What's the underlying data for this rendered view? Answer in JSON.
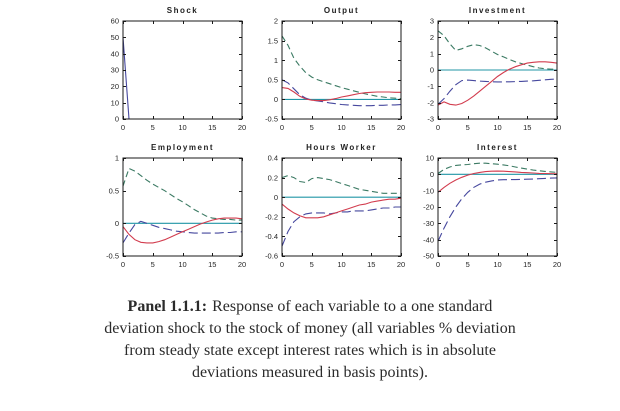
{
  "figure": {
    "kind": "impulse-response-panel",
    "rows": 2,
    "cols": 3
  },
  "caption": {
    "bold": "Panel 1.1.1:",
    "line1": "Response of each variable to a one standard",
    "line2": "deviation shock to the stock of money (all variables % deviation",
    "line3": "from steady state except interest rates which is in absolute",
    "line4": "deviations measured in basis points)."
  },
  "colors": {
    "green": "#3b7a63",
    "red": "#d23c4e",
    "blue": "#46489e",
    "teal": "#2196a6",
    "axis": "#1a1a1a"
  },
  "chart_data": [
    {
      "type": "line",
      "title": "Shock",
      "xlim": [
        0,
        20
      ],
      "ylim": [
        0,
        60
      ],
      "xticks": [
        0,
        5,
        10,
        15,
        20
      ],
      "yticks": [
        0,
        10,
        20,
        30,
        40,
        50,
        60
      ],
      "grid": false,
      "legend": "none",
      "series": [
        {
          "name": "zero-line",
          "color": "#2196a6",
          "style": "solid",
          "x": [
            0,
            20
          ],
          "y": [
            0,
            0
          ]
        },
        {
          "name": "money-shock-spike",
          "color": "#46489e",
          "style": "solid",
          "x": [
            0,
            1,
            20
          ],
          "y": [
            50,
            0,
            0
          ]
        },
        {
          "name": "flat-response",
          "color": "#d23c4e",
          "style": "solid",
          "x": [
            0,
            20
          ],
          "y": [
            0,
            0
          ]
        }
      ]
    },
    {
      "type": "line",
      "title": "Output",
      "xlim": [
        0,
        20
      ],
      "ylim": [
        -0.5,
        2
      ],
      "xticks": [
        0,
        5,
        10,
        15,
        20
      ],
      "yticks": [
        -0.5,
        0,
        0.5,
        1,
        1.5,
        2
      ],
      "grid": false,
      "legend": "none",
      "series": [
        {
          "name": "zero-line",
          "color": "#2196a6",
          "style": "solid",
          "x": [
            0,
            20
          ],
          "y": [
            0,
            0
          ]
        },
        {
          "name": "green-dashed",
          "color": "#3b7a63",
          "style": "dashed",
          "y": [
            1.62,
            1.38,
            1.05,
            0.85,
            0.68,
            0.57,
            0.5,
            0.45,
            0.4,
            0.35,
            0.3,
            0.26,
            0.22,
            0.18,
            0.14,
            0.11,
            0.08,
            0.06,
            0.04,
            0.03,
            0.02
          ]
        },
        {
          "name": "blue-longdash",
          "color": "#46489e",
          "style": "longdash",
          "y": [
            0.5,
            0.42,
            0.27,
            0.12,
            0.03,
            -0.02,
            -0.04,
            -0.06,
            -0.09,
            -0.11,
            -0.13,
            -0.14,
            -0.15,
            -0.16,
            -0.16,
            -0.16,
            -0.15,
            -0.15,
            -0.14,
            -0.14,
            -0.13
          ]
        },
        {
          "name": "red-solid",
          "color": "#d23c4e",
          "style": "solid",
          "y": [
            0.3,
            0.28,
            0.19,
            0.08,
            0.01,
            -0.02,
            -0.03,
            -0.03,
            -0.01,
            0.02,
            0.06,
            0.09,
            0.12,
            0.15,
            0.17,
            0.18,
            0.19,
            0.19,
            0.19,
            0.18,
            0.18
          ]
        }
      ]
    },
    {
      "type": "line",
      "title": "Investment",
      "xlim": [
        0,
        20
      ],
      "ylim": [
        -3,
        3
      ],
      "xticks": [
        0,
        5,
        10,
        15,
        20
      ],
      "yticks": [
        -3,
        -2,
        -1,
        0,
        1,
        2,
        3
      ],
      "grid": false,
      "legend": "none",
      "series": [
        {
          "name": "zero-line",
          "color": "#2196a6",
          "style": "solid",
          "x": [
            0,
            20
          ],
          "y": [
            0,
            0
          ]
        },
        {
          "name": "green-dashed",
          "color": "#3b7a63",
          "style": "dashed",
          "y": [
            2.4,
            2.1,
            1.6,
            1.2,
            1.3,
            1.45,
            1.55,
            1.5,
            1.35,
            1.15,
            0.95,
            0.8,
            0.65,
            0.5,
            0.4,
            0.3,
            0.2,
            0.12,
            0.08,
            0.05,
            0.05
          ]
        },
        {
          "name": "blue-longdash",
          "color": "#46489e",
          "style": "longdash",
          "y": [
            -2.1,
            -1.75,
            -1.3,
            -0.9,
            -0.65,
            -0.62,
            -0.65,
            -0.68,
            -0.7,
            -0.72,
            -0.73,
            -0.73,
            -0.72,
            -0.71,
            -0.7,
            -0.68,
            -0.66,
            -0.63,
            -0.6,
            -0.57,
            -0.55
          ]
        },
        {
          "name": "red-solid",
          "color": "#d23c4e",
          "style": "solid",
          "y": [
            -2.15,
            -1.95,
            -2.1,
            -2.15,
            -2.05,
            -1.85,
            -1.6,
            -1.3,
            -1.0,
            -0.7,
            -0.4,
            -0.15,
            0.05,
            0.2,
            0.32,
            0.42,
            0.47,
            0.5,
            0.5,
            0.47,
            0.42
          ]
        }
      ]
    },
    {
      "type": "line",
      "title": "Employment",
      "xlim": [
        0,
        20
      ],
      "ylim": [
        -0.5,
        1
      ],
      "xticks": [
        0,
        5,
        10,
        15,
        20
      ],
      "yticks": [
        -0.5,
        0,
        0.5,
        1
      ],
      "grid": false,
      "legend": "none",
      "series": [
        {
          "name": "zero-line",
          "color": "#2196a6",
          "style": "solid",
          "x": [
            0,
            20
          ],
          "y": [
            0,
            0
          ]
        },
        {
          "name": "green-dashed",
          "color": "#3b7a63",
          "style": "dashed",
          "y": [
            0.57,
            0.84,
            0.8,
            0.73,
            0.66,
            0.6,
            0.55,
            0.5,
            0.44,
            0.38,
            0.33,
            0.27,
            0.21,
            0.16,
            0.11,
            0.08,
            0.07,
            0.06,
            0.06,
            0.05,
            0.05
          ]
        },
        {
          "name": "blue-longdash",
          "color": "#46489e",
          "style": "longdash",
          "y": [
            -0.3,
            -0.15,
            -0.02,
            0.03,
            0.0,
            -0.03,
            -0.06,
            -0.08,
            -0.1,
            -0.12,
            -0.13,
            -0.14,
            -0.15,
            -0.15,
            -0.15,
            -0.15,
            -0.15,
            -0.14,
            -0.14,
            -0.13,
            -0.13
          ]
        },
        {
          "name": "red-solid",
          "color": "#d23c4e",
          "style": "solid",
          "y": [
            -0.05,
            -0.17,
            -0.25,
            -0.29,
            -0.3,
            -0.3,
            -0.28,
            -0.25,
            -0.21,
            -0.17,
            -0.13,
            -0.09,
            -0.05,
            -0.01,
            0.02,
            0.05,
            0.07,
            0.08,
            0.08,
            0.08,
            0.07
          ]
        }
      ]
    },
    {
      "type": "line",
      "title": "Hours Worker",
      "xlim": [
        0,
        20
      ],
      "ylim": [
        -0.6,
        0.4
      ],
      "xticks": [
        0,
        5,
        10,
        15,
        20
      ],
      "yticks": [
        -0.6,
        -0.4,
        -0.2,
        0,
        0.2,
        0.4
      ],
      "grid": false,
      "legend": "none",
      "series": [
        {
          "name": "zero-line",
          "color": "#2196a6",
          "style": "solid",
          "x": [
            0,
            20
          ],
          "y": [
            0,
            0
          ]
        },
        {
          "name": "green-dashed",
          "color": "#3b7a63",
          "style": "dashed",
          "y": [
            0.2,
            0.22,
            0.2,
            0.16,
            0.15,
            0.19,
            0.2,
            0.19,
            0.18,
            0.16,
            0.14,
            0.12,
            0.1,
            0.08,
            0.07,
            0.06,
            0.05,
            0.04,
            0.04,
            0.04,
            0.04
          ]
        },
        {
          "name": "blue-longdash",
          "color": "#46489e",
          "style": "longdash",
          "y": [
            -0.5,
            -0.35,
            -0.25,
            -0.2,
            -0.17,
            -0.16,
            -0.16,
            -0.16,
            -0.17,
            -0.16,
            -0.15,
            -0.15,
            -0.14,
            -0.14,
            -0.14,
            -0.13,
            -0.12,
            -0.11,
            -0.11,
            -0.1,
            -0.1
          ]
        },
        {
          "name": "red-solid",
          "color": "#d23c4e",
          "style": "solid",
          "y": [
            -0.07,
            -0.12,
            -0.16,
            -0.19,
            -0.21,
            -0.21,
            -0.21,
            -0.2,
            -0.18,
            -0.16,
            -0.14,
            -0.12,
            -0.1,
            -0.08,
            -0.07,
            -0.05,
            -0.04,
            -0.03,
            -0.02,
            -0.02,
            -0.01
          ]
        }
      ]
    },
    {
      "type": "line",
      "title": "Interest",
      "xlim": [
        0,
        20
      ],
      "ylim": [
        -50,
        10
      ],
      "xticks": [
        0,
        5,
        10,
        15,
        20
      ],
      "yticks": [
        -50,
        -40,
        -30,
        -20,
        -10,
        0,
        10
      ],
      "grid": false,
      "legend": "none",
      "series": [
        {
          "name": "zero-line",
          "color": "#2196a6",
          "style": "solid",
          "x": [
            0,
            20
          ],
          "y": [
            0,
            0
          ]
        },
        {
          "name": "green-dashed",
          "color": "#3b7a63",
          "style": "dashed",
          "y": [
            0.5,
            3,
            4.5,
            5.5,
            5.8,
            6,
            6.5,
            6.8,
            6.8,
            6.5,
            6.2,
            5.8,
            5.2,
            4.5,
            3.8,
            3.2,
            2.6,
            2.2,
            1.8,
            1.5,
            1.2
          ]
        },
        {
          "name": "blue-longdash",
          "color": "#46489e",
          "style": "longdash",
          "y": [
            -41,
            -33,
            -26,
            -20,
            -15,
            -11,
            -8,
            -6,
            -4.8,
            -4,
            -3.5,
            -3.3,
            -3.2,
            -3.2,
            -3.1,
            -3,
            -2.9,
            -2.7,
            -2.5,
            -2.3,
            -2.2
          ]
        },
        {
          "name": "red-solid",
          "color": "#d23c4e",
          "style": "solid",
          "y": [
            -11,
            -8,
            -5.5,
            -3.5,
            -1.8,
            -0.5,
            0.5,
            1.2,
            1.7,
            1.9,
            2,
            1.9,
            1.7,
            1.5,
            1.2,
            1,
            0.8,
            0.6,
            0.5,
            0.4,
            0.3
          ]
        }
      ]
    }
  ]
}
